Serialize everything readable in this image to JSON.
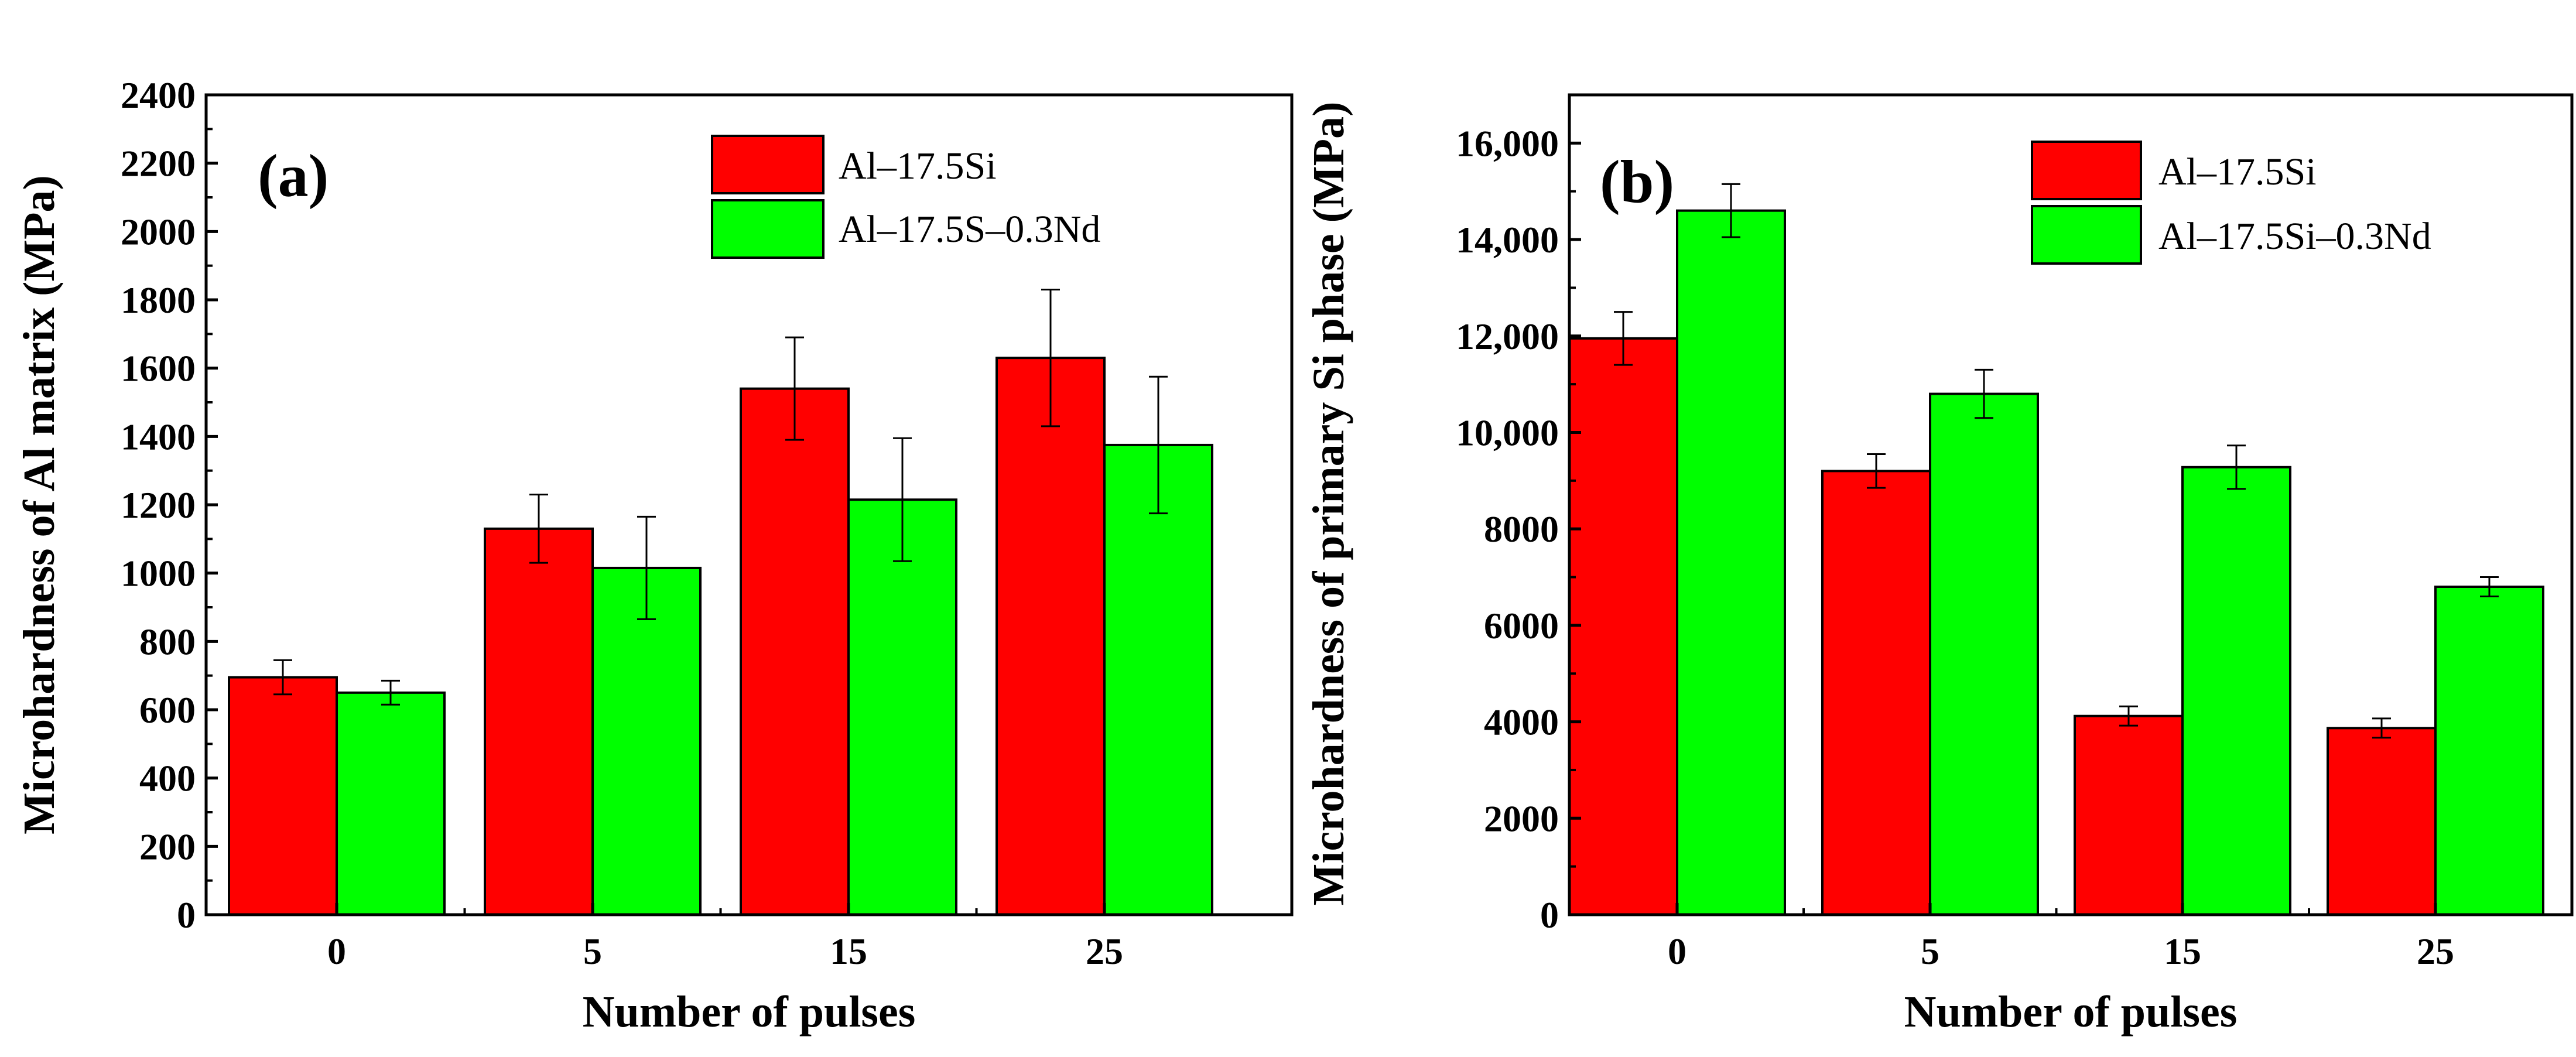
{
  "chart_data": [
    {
      "panel": "(a)",
      "type": "bar",
      "xlabel": "Number of pulses",
      "ylabel": "Microhardness of Al matrix (MPa)",
      "categories": [
        "0",
        "5",
        "15",
        "25"
      ],
      "ylim": [
        0,
        2400
      ],
      "yticks": [
        "0",
        "200",
        "400",
        "600",
        "800",
        "1000",
        "1200",
        "1400",
        "1600",
        "1800",
        "2000",
        "2200",
        "2400"
      ],
      "legend_position": "top-right",
      "series": [
        {
          "name": "Al–17.5Si",
          "color": "#ff0000",
          "values": [
            695,
            1130,
            1540,
            1630
          ],
          "errors": [
            50,
            100,
            150,
            200
          ]
        },
        {
          "name": "Al–17.5S–0.3Nd",
          "color": "#00ff00",
          "values": [
            650,
            1015,
            1215,
            1375
          ],
          "errors": [
            35,
            150,
            180,
            200
          ]
        }
      ]
    },
    {
      "panel": "(b)",
      "type": "bar",
      "xlabel": "Number of pulses",
      "ylabel": "Microhardness of primary Si phase (MPa)",
      "categories": [
        "0",
        "5",
        "15",
        "25"
      ],
      "ylim": [
        0,
        17000
      ],
      "yticks": [
        "0",
        "2000",
        "4000",
        "6000",
        "8000",
        "10,000",
        "12,000",
        "14,000",
        "16,000"
      ],
      "legend_position": "top-right",
      "series": [
        {
          "name": "Al–17.5Si",
          "color": "#ff0000",
          "values": [
            11950,
            9200,
            4120,
            3870
          ],
          "errors": [
            550,
            350,
            200,
            200
          ]
        },
        {
          "name": "Al–17.5Si–0.3Nd",
          "color": "#00ff00",
          "values": [
            14600,
            10800,
            9280,
            6800
          ],
          "errors": [
            550,
            500,
            450,
            200
          ]
        }
      ]
    }
  ]
}
